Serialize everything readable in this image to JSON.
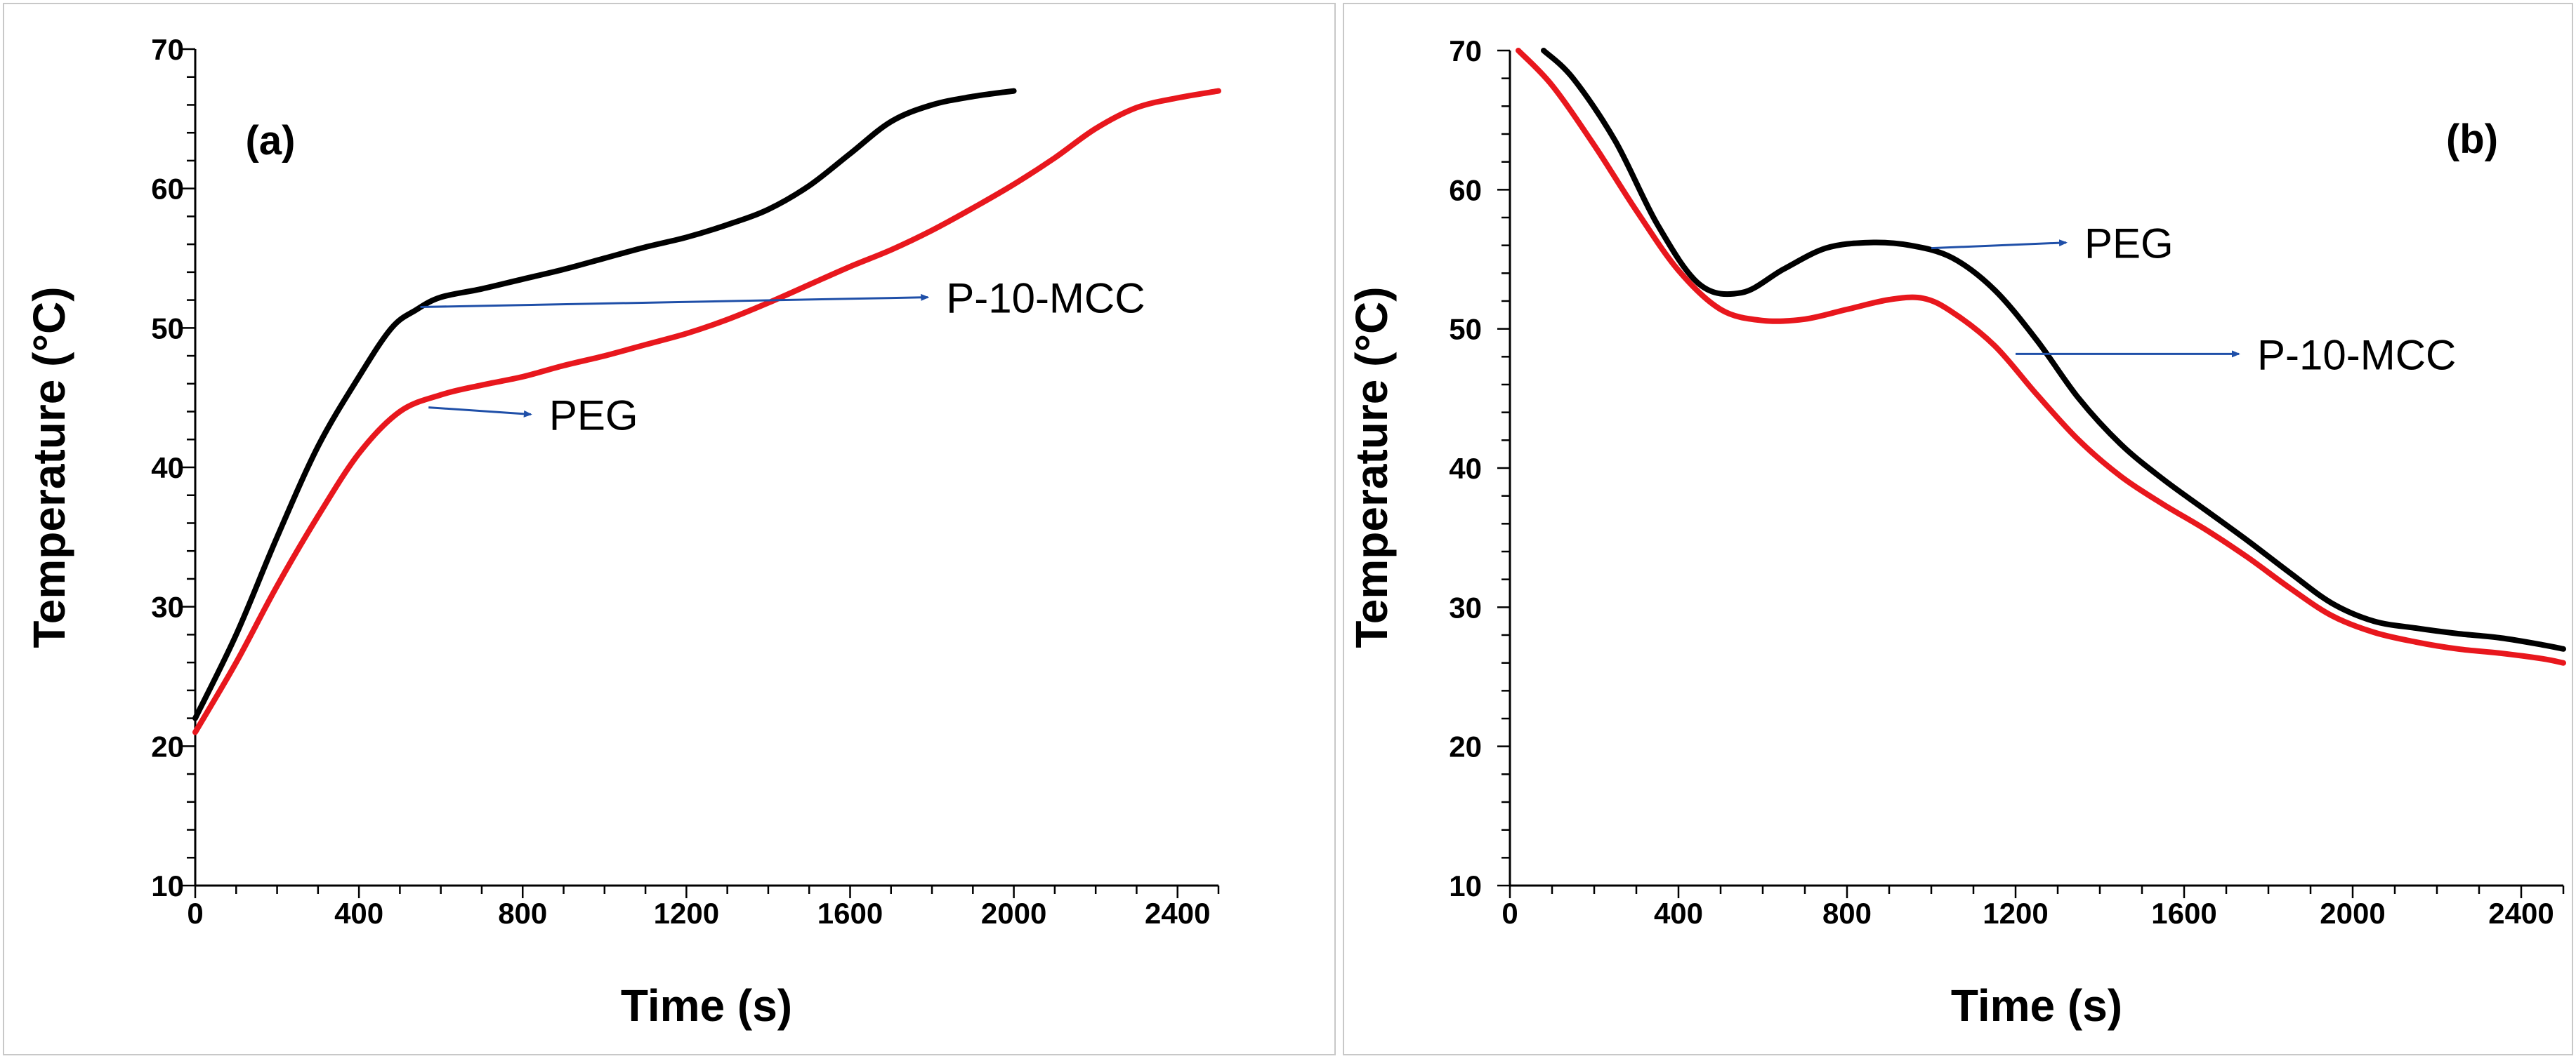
{
  "colors": {
    "black_series": "#000000",
    "red_series": "#e8171d",
    "annotation_arrow": "#1f4fa8",
    "axis": "#000000"
  },
  "chart_data": [
    {
      "type": "line",
      "panel_label": "(a)",
      "title": "",
      "xlabel": "Time (s)",
      "ylabel": "Temperature (°C)",
      "xlim": [
        0,
        2500
      ],
      "ylim": [
        10,
        70
      ],
      "x_ticks": [
        0,
        400,
        800,
        1200,
        1600,
        2000,
        2400
      ],
      "y_ticks": [
        10,
        20,
        30,
        40,
        50,
        60,
        70
      ],
      "grid": false,
      "legend": "none",
      "series": [
        {
          "name": "P-10-MCC",
          "color": "#000000",
          "x": [
            0,
            100,
            200,
            300,
            400,
            480,
            540,
            600,
            700,
            800,
            900,
            1000,
            1100,
            1200,
            1300,
            1400,
            1500,
            1600,
            1700,
            1800,
            1900,
            2000
          ],
          "y": [
            22,
            28,
            35,
            41.5,
            46.5,
            50,
            51.3,
            52.2,
            52.8,
            53.5,
            54.2,
            55,
            55.8,
            56.5,
            57.4,
            58.5,
            60.2,
            62.5,
            64.8,
            66,
            66.6,
            67
          ]
        },
        {
          "name": "PEG",
          "color": "#e8171d",
          "x": [
            0,
            100,
            200,
            300,
            400,
            500,
            600,
            700,
            800,
            900,
            1000,
            1100,
            1200,
            1300,
            1400,
            1500,
            1600,
            1700,
            1800,
            1900,
            2000,
            2100,
            2200,
            2300,
            2400,
            2500
          ],
          "y": [
            21,
            26,
            31.5,
            36.5,
            41,
            44,
            45.2,
            45.9,
            46.5,
            47.3,
            48,
            48.8,
            49.6,
            50.6,
            51.8,
            53.1,
            54.4,
            55.6,
            57,
            58.6,
            60.3,
            62.2,
            64.3,
            65.8,
            66.5,
            67
          ]
        }
      ],
      "annotations": [
        {
          "text": "P-10-MCC",
          "from": [
            550,
            51.5
          ],
          "to": [
            1790,
            52.2
          ]
        },
        {
          "text": "PEG",
          "from": [
            570,
            44.3
          ],
          "to": [
            820,
            43.8
          ]
        }
      ]
    },
    {
      "type": "line",
      "panel_label": "(b)",
      "title": "",
      "xlabel": "Time (s)",
      "ylabel": "Temperature (°C)",
      "xlim": [
        0,
        2500
      ],
      "ylim": [
        10,
        70
      ],
      "x_ticks": [
        0,
        400,
        800,
        1200,
        1600,
        2000,
        2400
      ],
      "y_ticks": [
        10,
        20,
        30,
        40,
        50,
        60,
        70
      ],
      "grid": false,
      "legend": "none",
      "series": [
        {
          "name": "PEG",
          "color": "#000000",
          "x": [
            80,
            150,
            250,
            350,
            450,
            550,
            650,
            750,
            850,
            950,
            1050,
            1150,
            1250,
            1350,
            1450,
            1550,
            1650,
            1750,
            1850,
            1950,
            2050,
            2150,
            2250,
            2350,
            2450,
            2500
          ],
          "y": [
            70,
            68,
            63.5,
            57.5,
            53.2,
            52.6,
            54.3,
            55.8,
            56.2,
            56,
            55.1,
            52.8,
            49.2,
            45,
            41.7,
            39.2,
            37,
            34.8,
            32.5,
            30.3,
            29,
            28.5,
            28.1,
            27.8,
            27.3,
            27
          ]
        },
        {
          "name": "P-10-MCC",
          "color": "#e8171d",
          "x": [
            20,
            100,
            200,
            300,
            400,
            500,
            600,
            700,
            800,
            900,
            980,
            1050,
            1150,
            1250,
            1350,
            1450,
            1550,
            1650,
            1750,
            1850,
            1950,
            2050,
            2150,
            2250,
            2350,
            2450,
            2500
          ],
          "y": [
            70,
            67.5,
            63.2,
            58.5,
            54.2,
            51.4,
            50.6,
            50.7,
            51.4,
            52.1,
            52.2,
            51.2,
            48.8,
            45.3,
            42,
            39.4,
            37.4,
            35.6,
            33.6,
            31.4,
            29.4,
            28.2,
            27.5,
            27,
            26.7,
            26.3,
            26
          ]
        }
      ],
      "annotations": [
        {
          "text": "PEG",
          "from": [
            1000,
            55.8
          ],
          "to": [
            1320,
            56.2
          ]
        },
        {
          "text": "P-10-MCC",
          "from": [
            1200,
            48.2
          ],
          "to": [
            1730,
            48.2
          ]
        }
      ]
    }
  ]
}
